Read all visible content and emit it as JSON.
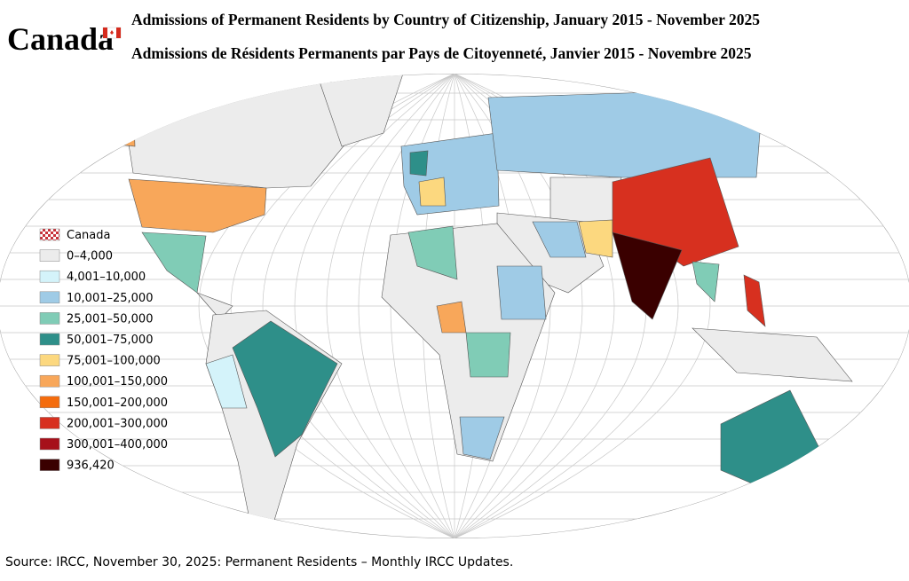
{
  "header": {
    "logo": "Canada",
    "title_en": "Admissions of Permanent Residents by Country of Citizenship, January 2015 - November 2025",
    "title_fr": "Admissions de Résidents Permanents par Pays de Citoyenneté, Janvier 2015 - Novembre 2025"
  },
  "legend": {
    "items": [
      {
        "label": "Canada",
        "color": "#c8323a"
      },
      {
        "label": "0–4,000",
        "color": "#ececec"
      },
      {
        "label": "4,001–10,000",
        "color": "#d4f3fa"
      },
      {
        "label": "10,001–25,000",
        "color": "#9fcbe6"
      },
      {
        "label": "25,001–50,000",
        "color": "#80ccb6"
      },
      {
        "label": "50,001–75,000",
        "color": "#2e8f89"
      },
      {
        "label": "75,001–100,000",
        "color": "#fcd87f"
      },
      {
        "label": "100,001–150,000",
        "color": "#f8a75a"
      },
      {
        "label": "150,001–200,000",
        "color": "#f46c0d"
      },
      {
        "label": "200,001–300,000",
        "color": "#d7301f"
      },
      {
        "label": "300,001–400,000",
        "color": "#a6101a"
      },
      {
        "label": "936,420",
        "color": "#3a0000"
      }
    ]
  },
  "source": "Source: IRCC, November 30, 2025: Permanent Residents – Monthly IRCC Updates."
}
